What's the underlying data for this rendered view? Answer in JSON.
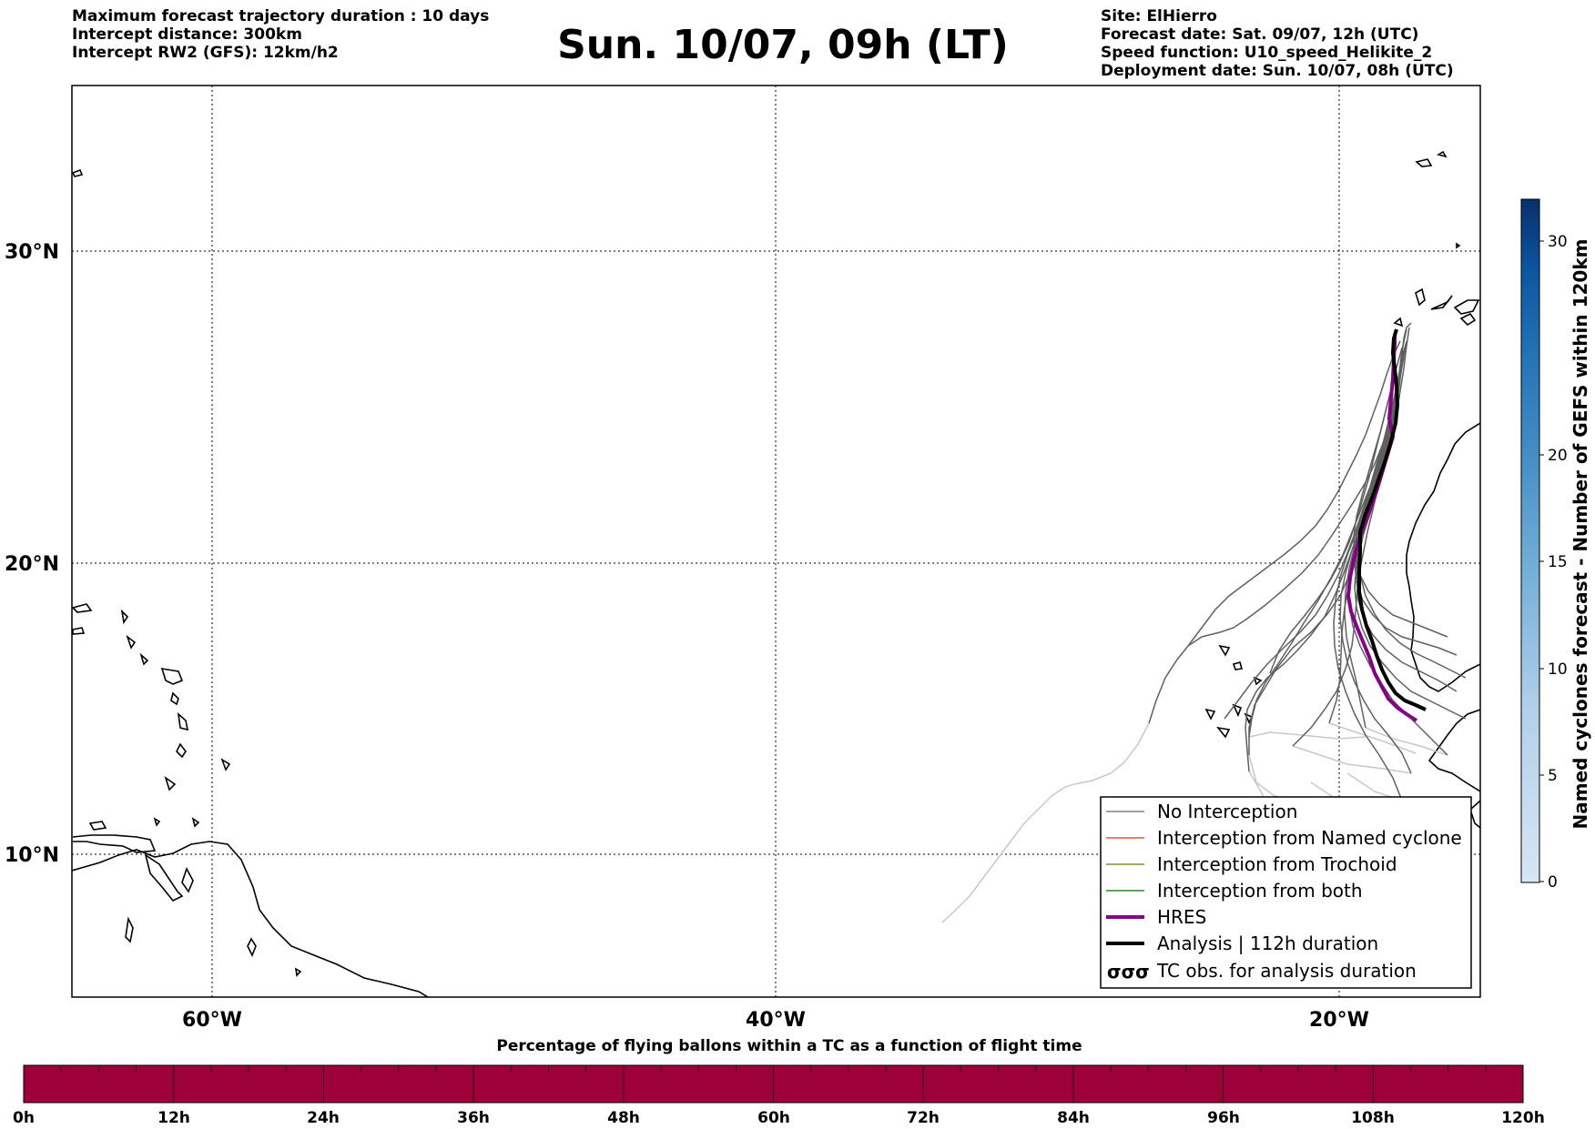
{
  "header": {
    "left_lines": [
      "Maximum forecast trajectory duration : 10 days",
      "Intercept distance: 300km",
      "Intercept RW2 (GFS):  12km/h2"
    ],
    "title": "Sun. 10/07, 09h (LT)",
    "right_lines": [
      "Site: ElHierro",
      "Forecast date: Sat. 09/07, 12h (UTC)",
      "Speed function: U10_speed_Helikite_2",
      "Deployment date: Sun. 10/07, 08h (UTC)"
    ]
  },
  "map": {
    "lat_labels": [
      "30°N",
      "20°N",
      "10°N"
    ],
    "lon_labels": [
      "60°W",
      "40°W",
      "20°W"
    ],
    "grid": "dotted",
    "legend_position": "bottom-right",
    "legend": [
      {
        "label": "No Interception",
        "color": "#808080",
        "style": "line-thin"
      },
      {
        "label": "Interception from Named cyclone",
        "color": "#e8562a",
        "style": "line-thin"
      },
      {
        "label": "Interception from Trochoid",
        "color": "#8a8a2a",
        "style": "line-thin"
      },
      {
        "label": "Interception from both",
        "color": "#2a8a2a",
        "style": "line-thin"
      },
      {
        "label": "HRES",
        "color": "#880088",
        "style": "line-thick"
      },
      {
        "label": "Analysis | 112h duration",
        "color": "#000000",
        "style": "line-thick"
      },
      {
        "label": "TC obs. for analysis duration",
        "color": "#000000",
        "style": "symbols",
        "symbol_text": "σσσ"
      }
    ]
  },
  "colorbar": {
    "label": "Named cyclones forecast - Number of GEFS within 120km",
    "ticks": [
      "0",
      "5",
      "10",
      "15",
      "20",
      "30"
    ],
    "color_low": "#d6e6f4",
    "color_high": "#08306b"
  },
  "flight_bar": {
    "title": "Percentage of flying ballons within a TC as a function of flight time",
    "ticks": [
      "0h",
      "12h",
      "24h",
      "36h",
      "48h",
      "60h",
      "72h",
      "84h",
      "96h",
      "108h",
      "120h"
    ],
    "fill_color": "#9e0039"
  },
  "trajectories": {
    "early_color": "#606060",
    "late_color": "#c8c8c8",
    "hres_color": "#880088",
    "analysis_color": "#000000"
  }
}
